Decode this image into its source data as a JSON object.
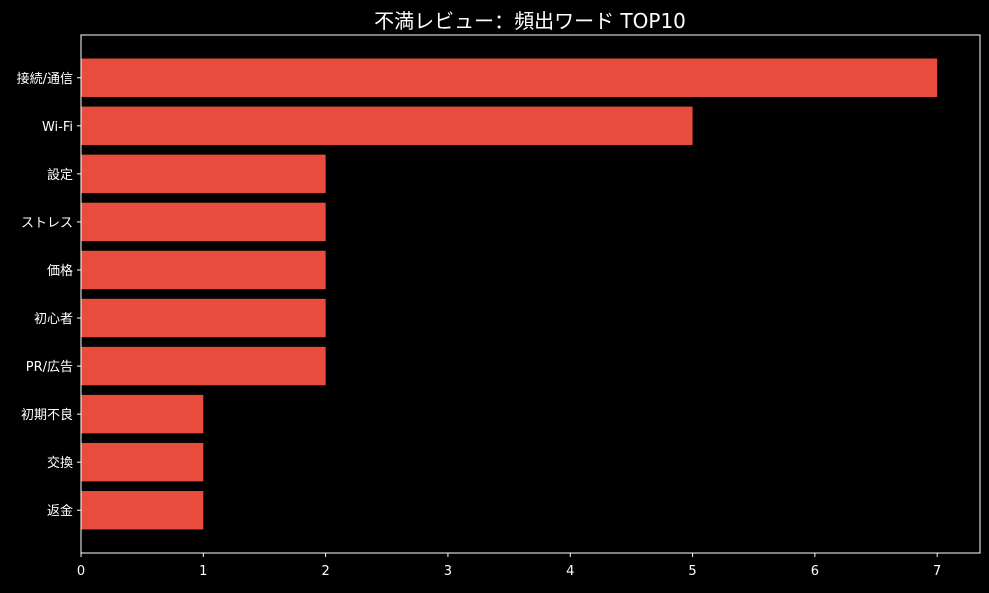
{
  "chart_data": {
    "type": "bar",
    "orientation": "horizontal",
    "title": "不満レビュー：頻出ワード TOP10",
    "xlabel": "",
    "ylabel": "",
    "categories": [
      "接続/通信",
      "Wi-Fi",
      "設定",
      "ストレス",
      "価格",
      "初心者",
      "PR/広告",
      "初期不良",
      "交換",
      "返金"
    ],
    "values": [
      7,
      5,
      2,
      2,
      2,
      2,
      2,
      1,
      1,
      1
    ],
    "xlim": [
      0,
      7.35
    ],
    "xticks": [
      "0",
      "1",
      "2",
      "3",
      "4",
      "5",
      "6",
      "7"
    ],
    "grid": false,
    "background": "#000000",
    "bar_color": "#e74c3c",
    "axis_color": "#ffffff"
  }
}
